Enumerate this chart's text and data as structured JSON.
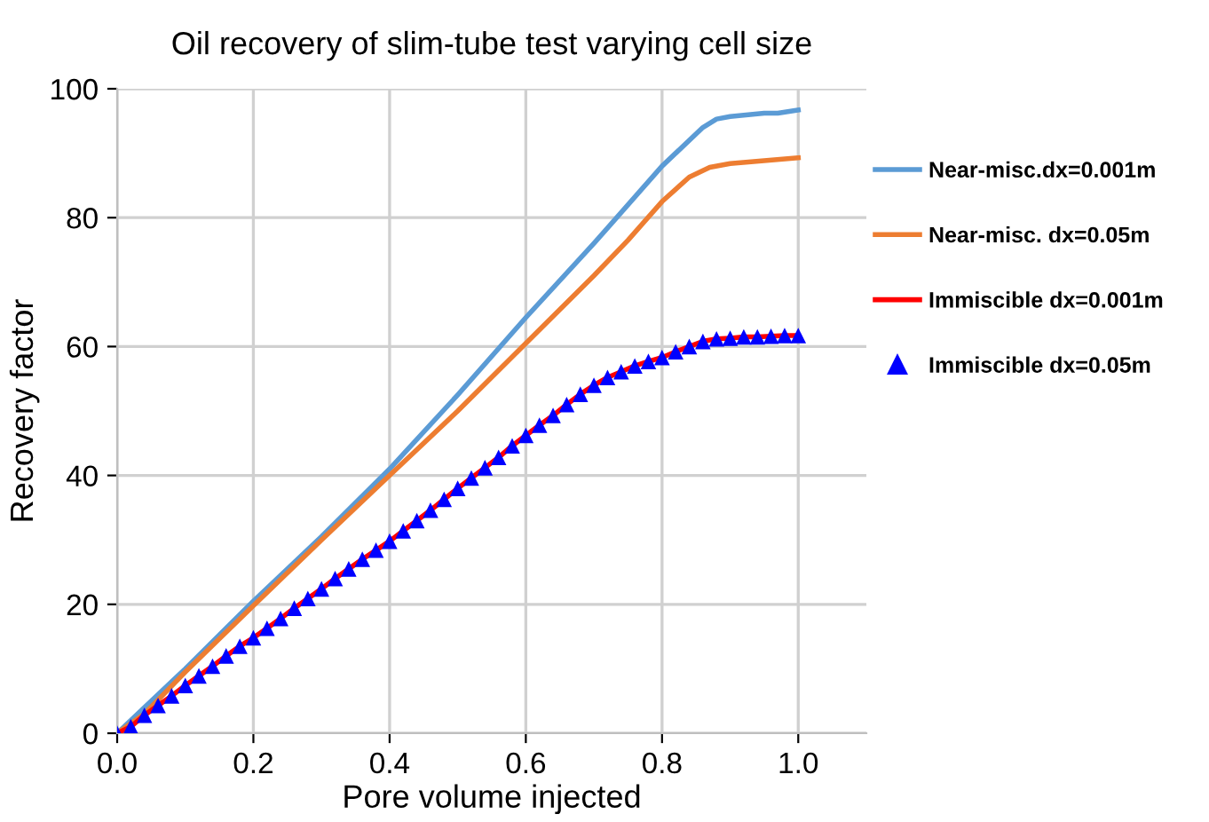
{
  "chart_data": {
    "type": "line",
    "title": "Oil recovery of slim-tube test varying cell size",
    "xlabel": "Pore volume injected",
    "ylabel": "Recovery factor",
    "xlim": [
      0,
      1.1
    ],
    "xticks": [
      {
        "value": 0,
        "label": "0.0"
      },
      0.2,
      0.4,
      0.6,
      0.8,
      {
        "value": 1.0,
        "label": "1.0"
      }
    ],
    "ylim": [
      0,
      100
    ],
    "yticks": [
      0,
      20,
      40,
      60,
      80,
      100
    ],
    "grid": true,
    "legend": "right",
    "marker": "none",
    "line_style": "solid",
    "series": [
      {
        "name": "Near-misc.dx=0.001m",
        "color": "#5b9bd5",
        "x": [
          0,
          0.1,
          0.2,
          0.3,
          0.4,
          0.5,
          0.6,
          0.7,
          0.8,
          0.86,
          0.88,
          0.9,
          0.95,
          0.97,
          1.0
        ],
        "values": [
          0,
          10,
          20.5,
          30.5,
          41,
          52.5,
          64.5,
          76,
          88,
          94,
          95.3,
          95.7,
          96.2,
          96.2,
          96.7
        ]
      },
      {
        "name": "Near-misc. dx=0.05m",
        "color": "#ed7d31",
        "x": [
          0,
          0.04,
          0.1,
          0.2,
          0.3,
          0.4,
          0.5,
          0.6,
          0.7,
          0.75,
          0.8,
          0.84,
          0.87,
          0.9,
          1.0
        ],
        "values": [
          0,
          3,
          9.5,
          19.8,
          30,
          40,
          50,
          60.5,
          71,
          76.5,
          82.5,
          86.3,
          87.8,
          88.4,
          89.3
        ]
      },
      {
        "name": "Immiscible dx=0.001m",
        "color": "#ff0000",
        "x": [
          0,
          0.02,
          0.04,
          0.06,
          0.08,
          0.1,
          0.12,
          0.14,
          0.16,
          0.18,
          0.2,
          0.22,
          0.24,
          0.26,
          0.28,
          0.3,
          0.32,
          0.34,
          0.36,
          0.38,
          0.4,
          0.42,
          0.44,
          0.46,
          0.48,
          0.5,
          0.52,
          0.54,
          0.56,
          0.58,
          0.6,
          0.62,
          0.64,
          0.66,
          0.68,
          0.7,
          0.72,
          0.74,
          0.76,
          0.78,
          0.8,
          0.82,
          0.84,
          0.86,
          0.88,
          0.9,
          0.92,
          0.94,
          0.96,
          0.98,
          1.0
        ],
        "values": [
          0,
          1,
          2.8,
          4.3,
          5.8,
          7.4,
          8.9,
          10.4,
          12,
          13.5,
          14.8,
          16.3,
          17.8,
          19.4,
          20.9,
          22.4,
          24,
          25.5,
          27,
          28.4,
          29.8,
          31.4,
          33,
          34.6,
          36.3,
          38,
          39.6,
          41.2,
          42.8,
          44.6,
          46.2,
          47.8,
          49.3,
          51,
          52.6,
          54,
          55.2,
          56.1,
          57,
          57.7,
          58.3,
          59.2,
          60,
          60.8,
          61.2,
          61.3,
          61.5,
          61.5,
          61.6,
          61.7,
          61.7
        ]
      },
      {
        "name": "Immiscible dx=0.05m",
        "color": "#0000ff",
        "type": "scatter",
        "marker": "triangle",
        "x": [
          0,
          0.02,
          0.04,
          0.06,
          0.08,
          0.1,
          0.12,
          0.14,
          0.16,
          0.18,
          0.2,
          0.22,
          0.24,
          0.26,
          0.28,
          0.3,
          0.32,
          0.34,
          0.36,
          0.38,
          0.4,
          0.42,
          0.44,
          0.46,
          0.48,
          0.5,
          0.52,
          0.54,
          0.56,
          0.58,
          0.6,
          0.62,
          0.64,
          0.66,
          0.68,
          0.7,
          0.72,
          0.74,
          0.76,
          0.78,
          0.8,
          0.82,
          0.84,
          0.86,
          0.88,
          0.9,
          0.92,
          0.94,
          0.96,
          0.98,
          1.0
        ],
        "values": [
          0,
          1,
          2.8,
          4.3,
          5.8,
          7.4,
          8.9,
          10.4,
          12,
          13.5,
          14.8,
          16.3,
          17.8,
          19.4,
          20.9,
          22.4,
          24,
          25.5,
          27,
          28.4,
          29.8,
          31.4,
          33,
          34.6,
          36.3,
          38,
          39.6,
          41.2,
          42.8,
          44.6,
          46.2,
          47.8,
          49.3,
          51,
          52.6,
          54,
          55.2,
          56.1,
          57,
          57.7,
          58.3,
          59.2,
          60,
          60.8,
          61.2,
          61.3,
          61.5,
          61.5,
          61.6,
          61.7,
          61.7
        ]
      }
    ]
  }
}
